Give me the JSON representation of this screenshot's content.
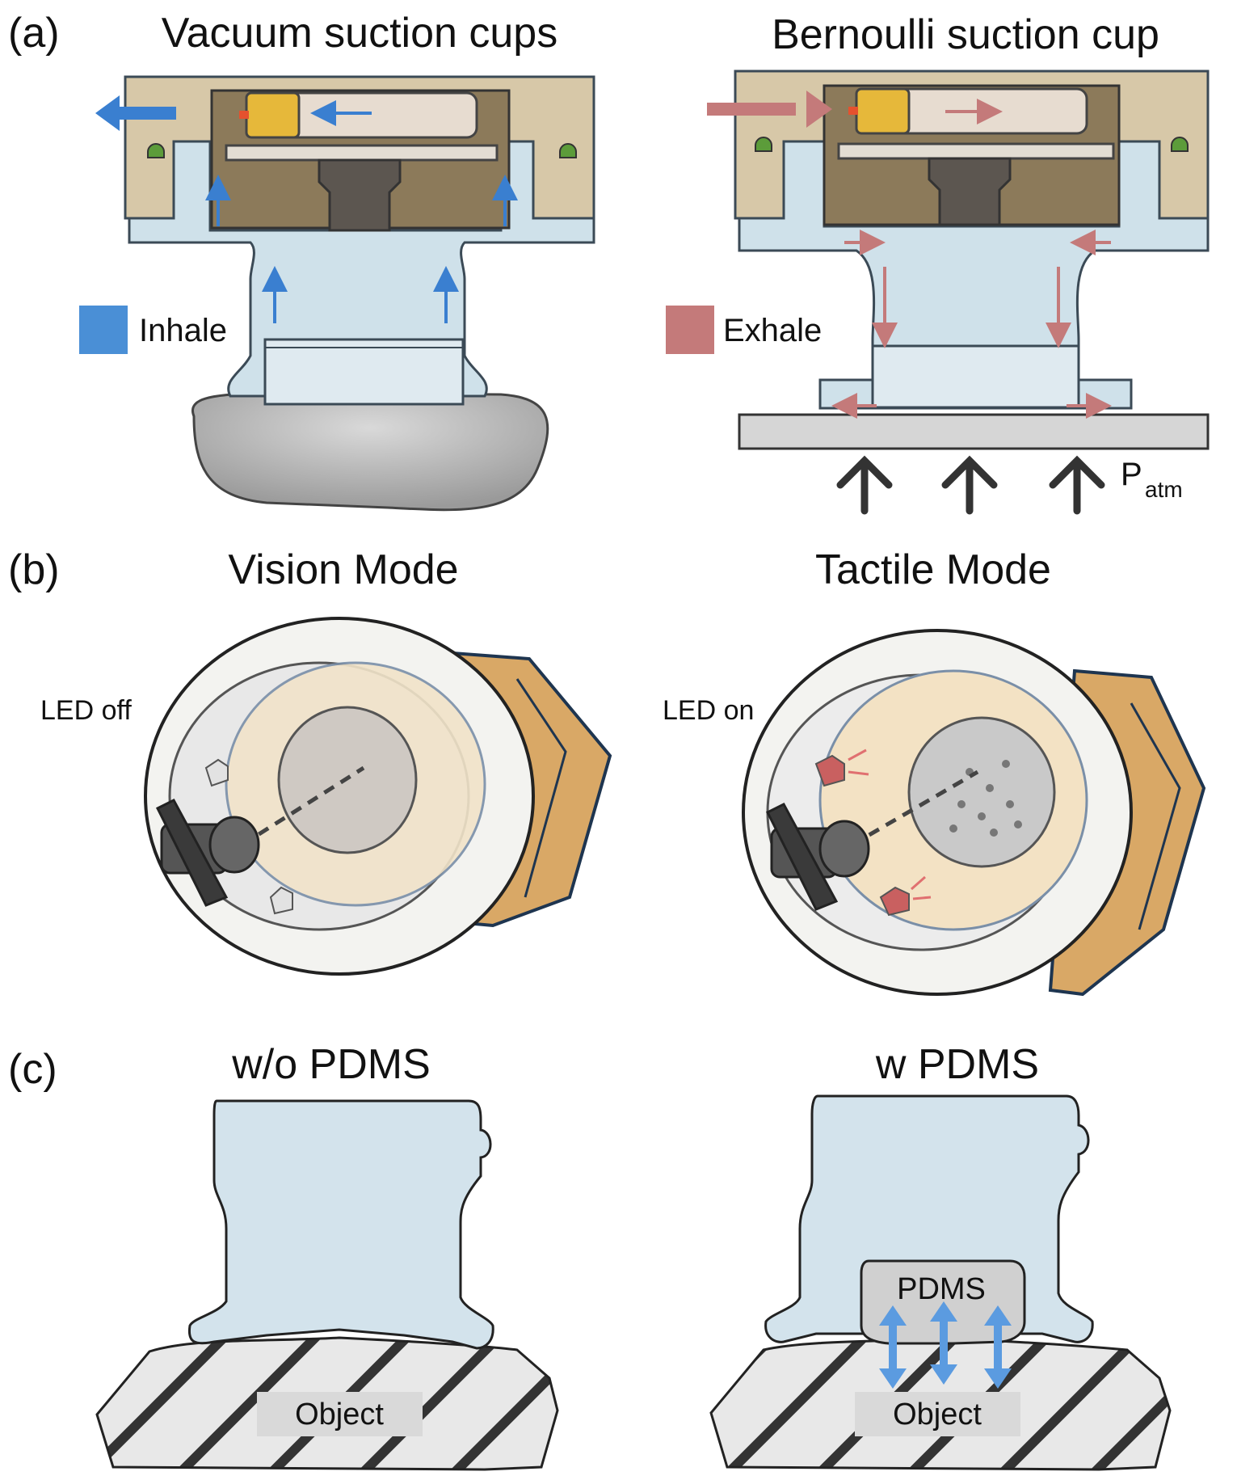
{
  "panel_a": {
    "label": "(a)",
    "left_title": "Vacuum suction cups",
    "right_title": "Bernoulli suction cup",
    "legend_inhale": "Inhale",
    "legend_exhale": "Exhale",
    "pressure_symbol": "P",
    "pressure_subscript": "atm",
    "inhale_color": "#4a8fd6",
    "exhale_color": "#c47a7a"
  },
  "panel_b": {
    "label": "(b)",
    "left_title": "Vision Mode",
    "right_title": "Tactile Mode",
    "left_led": "LED off",
    "right_led": "LED on"
  },
  "panel_c": {
    "label": "(c)",
    "left_title": "w/o PDMS",
    "right_title": "w PDMS",
    "pdms_label": "PDMS",
    "object_left": "Object",
    "object_right": "Object"
  },
  "colors": {
    "housing": "#d7c8a8",
    "cup": "#cfe1ea",
    "camera_body": "#d9a866",
    "object_gray": "#bdbdbd"
  }
}
